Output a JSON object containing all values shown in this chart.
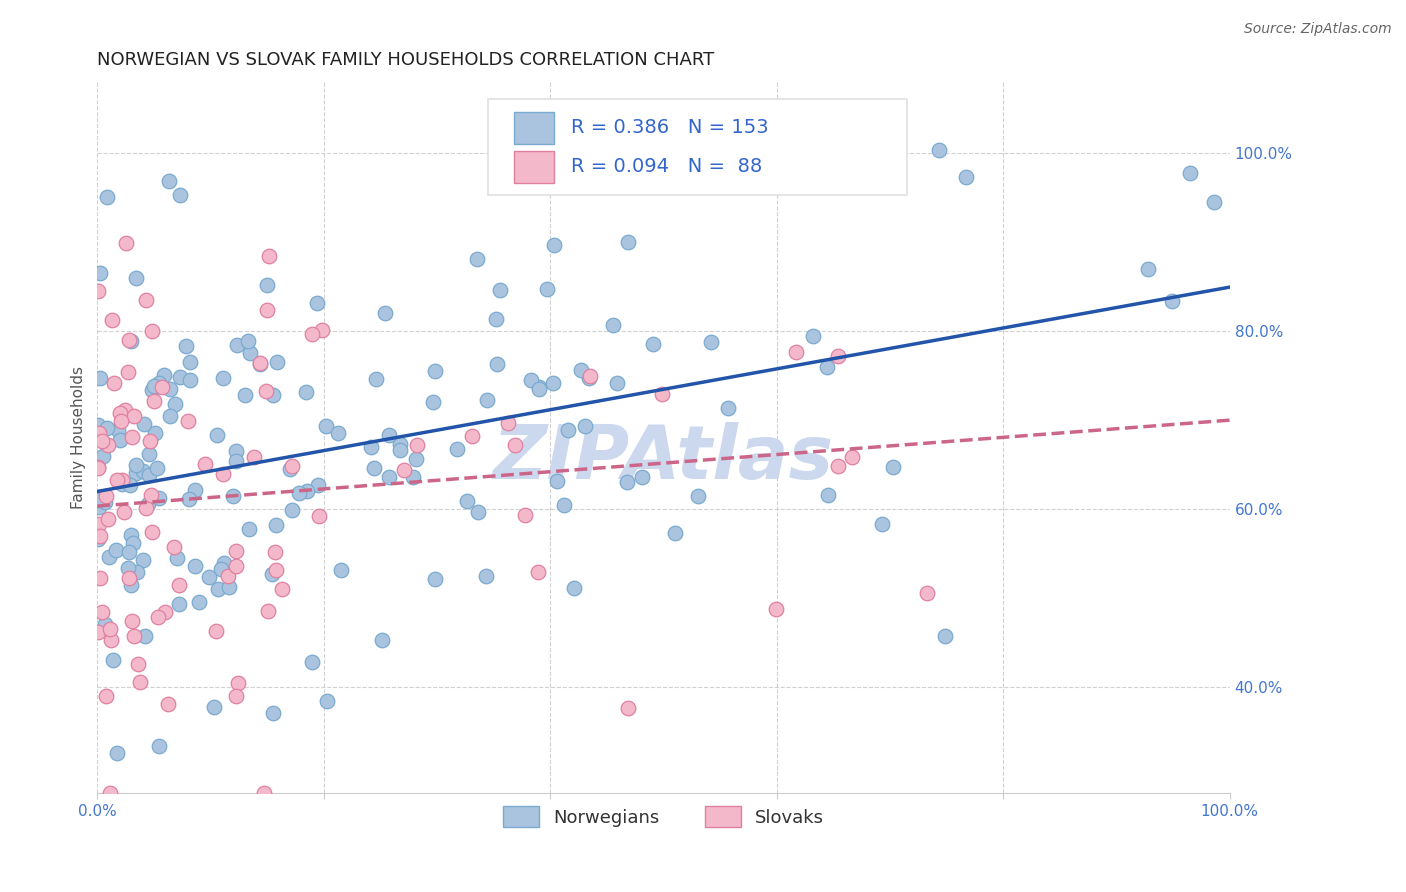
{
  "title": "NORWEGIAN VS SLOVAK FAMILY HOUSEHOLDS CORRELATION CHART",
  "source": "Source: ZipAtlas.com",
  "ylabel": "Family Households",
  "xlim": [
    0.0,
    1.0
  ],
  "ylim": [
    0.28,
    1.08
  ],
  "x_ticks": [
    0.0,
    0.2,
    0.4,
    0.6,
    0.8,
    1.0
  ],
  "x_tick_labels": [
    "0.0%",
    "",
    "",
    "",
    "",
    "100.0%"
  ],
  "y_ticks": [
    0.4,
    0.6,
    0.8,
    1.0
  ],
  "y_tick_labels": [
    "40.0%",
    "60.0%",
    "80.0%",
    "100.0%"
  ],
  "norwegian_color": "#aac4e0",
  "norwegian_edge_color": "#7aaacf",
  "slovak_color": "#f4b8cb",
  "slovak_edge_color": "#e080a0",
  "trend_norwegian_color": "#2255aa",
  "trend_slovak_color": "#cc6688",
  "R_norwegian": 0.386,
  "N_norwegian": 153,
  "R_slovak": 0.094,
  "N_slovak": 88,
  "watermark": "ZIPAtlas",
  "watermark_color": "#ccd8ee",
  "background_color": "#ffffff",
  "grid_color": "#cccccc",
  "norwegian_seed": 42,
  "slovak_seed": 7,
  "legend_label_norwegian": "Norwegians",
  "legend_label_slovak": "Slovaks",
  "title_fontsize": 13,
  "axis_label_fontsize": 11,
  "tick_fontsize": 11,
  "legend_fontsize": 13,
  "source_fontsize": 10,
  "tick_color": "#4477cc",
  "legend_text_color": "#3366cc",
  "legend_rn_color": "#3366cc"
}
